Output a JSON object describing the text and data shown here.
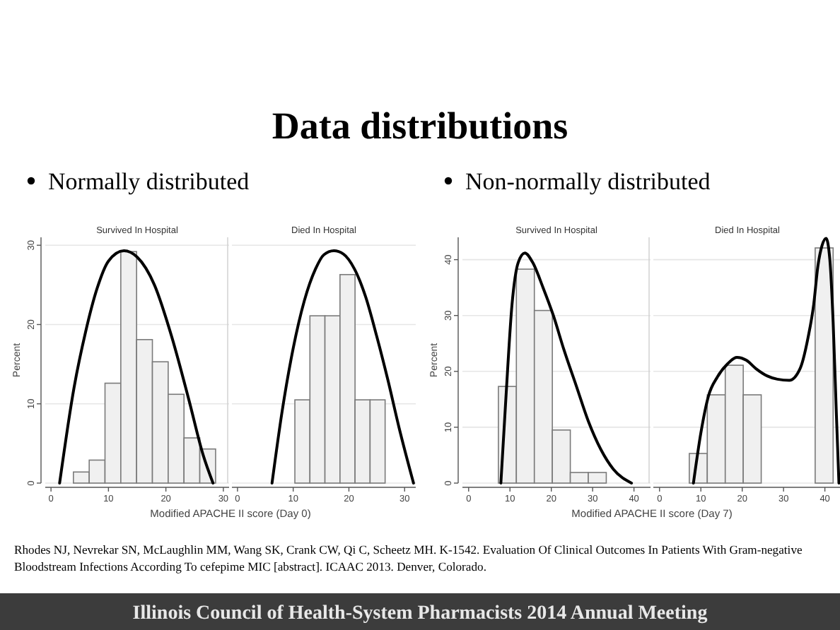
{
  "chart_data": [
    {
      "type": "histogram",
      "title": "Survived In Hospital",
      "subtitle": "Normally distributed",
      "xlabel": "Modified APACHE II score (Day 0)",
      "ylabel": "Percent",
      "annotations": [
        "Data distributions",
        "Rhodes NJ, Nevrekar SN, McLaughlin MM, Wang SK, Crank CW, Qi C, Scheetz MH. K-1542. Evaluation Of Clinical Outcomes In Patients With Gram-negative Bloodstream Infections According To cefepime MIC [abstract]. ICAAC 2013. Denver, Colorado.",
        "Illinois Council of Health-System Pharmacists 2014 Annual Meeting"
      ],
      "xlim": [
        -1,
        31
      ],
      "ylim": [
        0,
        31
      ],
      "xticks": [
        0,
        10,
        20,
        30
      ],
      "yticks": [
        0,
        10,
        20,
        30
      ],
      "grid": "y",
      "series": [
        {
          "color": "#f0f0f0",
          "bins": [
            3.9,
            6.65,
            9.4,
            12.15,
            14.9,
            17.65,
            20.4,
            23.15,
            25.9,
            28.65
          ],
          "values": [
            1.4,
            2.9,
            12.6,
            29.2,
            18.1,
            15.3,
            11.2,
            5.7,
            4.3
          ]
        },
        {
          "type": "line",
          "color": "#000000",
          "x": [
            1.5,
            4,
            6,
            8,
            10,
            12.7,
            15,
            18,
            21,
            24,
            26.5,
            28.2
          ],
          "values": [
            0,
            12,
            19,
            24.5,
            28,
            29.3,
            28.5,
            25,
            18.5,
            10.5,
            3.5,
            0
          ]
        }
      ]
    },
    {
      "type": "histogram",
      "title": "Died In Hospital",
      "xlim": [
        -1,
        32
      ],
      "ylim": [
        0,
        31
      ],
      "xticks": [
        0,
        10,
        20,
        30
      ],
      "yticks": [
        0,
        10,
        20,
        30
      ],
      "grid": "y",
      "tick_labels": "x",
      "series": [
        {
          "color": "#f0f0f0",
          "bins": [
            10.3,
            13,
            15.7,
            18.4,
            21.1,
            23.8,
            26.5
          ],
          "values": [
            10.5,
            21.1,
            21.1,
            26.3,
            10.5,
            10.5
          ]
        },
        {
          "type": "line",
          "color": "#000000",
          "x": [
            6.2,
            8,
            10,
            12,
            14,
            15.5,
            17.3,
            19,
            21,
            23,
            25,
            27,
            29,
            31.6
          ],
          "values": [
            0,
            9,
            17,
            23,
            27,
            28.8,
            29.3,
            28.9,
            27,
            23.5,
            18.5,
            13,
            7,
            0
          ]
        }
      ]
    },
    {
      "type": "histogram",
      "title": "Survived In Hospital",
      "subtitle": "Non-normally distributed",
      "xlabel": "Modified APACHE II score (Day 7)",
      "ylabel": "Percent",
      "xlim": [
        -1.5,
        44
      ],
      "ylim": [
        0,
        44
      ],
      "xticks": [
        0,
        10,
        20,
        30,
        40
      ],
      "yticks": [
        0,
        10,
        20,
        30,
        40
      ],
      "grid": "y",
      "series": [
        {
          "color": "#f0f0f0",
          "bins": [
            7.2,
            11.55,
            15.9,
            20.25,
            24.6,
            28.95,
            33.3
          ],
          "values": [
            17.3,
            38.3,
            30.9,
            9.5,
            1.9,
            1.9
          ]
        },
        {
          "type": "line",
          "color": "#000000",
          "x": [
            7.8,
            9,
            10.5,
            12,
            13.6,
            15.5,
            18,
            20.5,
            23,
            26,
            29,
            32,
            35,
            39.4
          ],
          "values": [
            0,
            15,
            32,
            39.5,
            41.2,
            39.5,
            35,
            30,
            24,
            17.5,
            11,
            6,
            2.5,
            0
          ]
        }
      ]
    },
    {
      "type": "histogram",
      "title": "Died In Hospital",
      "xlim": [
        -1.5,
        44
      ],
      "ylim": [
        0,
        44
      ],
      "xticks": [
        0,
        10,
        20,
        30,
        40
      ],
      "yticks": [
        0,
        10,
        20,
        30,
        40
      ],
      "grid": "y",
      "tick_labels": "x",
      "series": [
        {
          "color": "#f0f0f0",
          "bins": [
            7.2,
            11.55,
            15.9,
            20.25,
            24.6,
            28.95,
            33.3,
            37.65,
            42
          ],
          "values": [
            5.3,
            15.8,
            21.1,
            15.8,
            0,
            0,
            0,
            42.1
          ]
        },
        {
          "type": "line",
          "color": "#000000",
          "x": [
            8.2,
            10,
            11.8,
            14,
            16.4,
            18.7,
            21,
            23.3,
            26,
            28.5,
            31.4,
            34,
            36,
            37.3,
            38.3,
            39.3,
            40.3,
            41.2,
            42,
            42.8,
            43.4
          ],
          "values": [
            0,
            9,
            15.5,
            19,
            21.3,
            22.5,
            22,
            20.5,
            19.2,
            18.6,
            18.4,
            20.5,
            26.3,
            32,
            38.8,
            42.5,
            43.8,
            40,
            28.8,
            12,
            0
          ]
        }
      ]
    }
  ]
}
